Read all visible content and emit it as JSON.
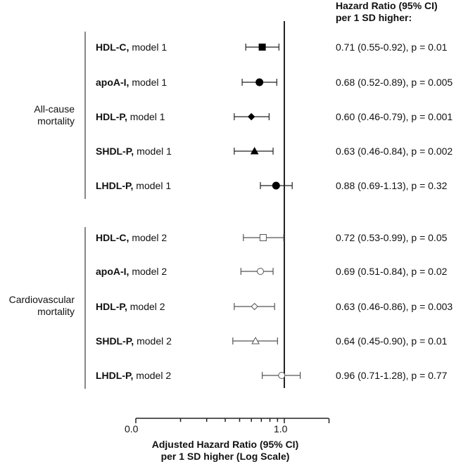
{
  "header": {
    "line1": "Hazard Ratio (95% CI)",
    "line2": "per 1 SD higher:"
  },
  "groups": [
    {
      "label_line1": "All-cause",
      "label_line2": "mortality"
    },
    {
      "label_line1": "Cardiovascular",
      "label_line2": "mortality"
    }
  ],
  "rows": [
    {
      "marker": "HDL-C,",
      "model": " model 1",
      "stat": "0.71 (0.55-0.92), p = 0.01"
    },
    {
      "marker": "apoA-I,",
      "model": " model 1",
      "stat": "0.68 (0.52-0.89), p = 0.005"
    },
    {
      "marker": "HDL-P,",
      "model": " model 1",
      "stat": "0.60 (0.46-0.79), p = 0.001"
    },
    {
      "marker": "SHDL-P,",
      "model": " model 1",
      "stat": "0.63 (0.46-0.84), p = 0.002"
    },
    {
      "marker": "LHDL-P,",
      "model": " model 1",
      "stat": "0.88 (0.69-1.13), p = 0.32"
    },
    {
      "marker": "HDL-C,",
      "model": " model 2",
      "stat": "0.72 (0.53-0.99), p = 0.05"
    },
    {
      "marker": "apoA-I,",
      "model": " model 2",
      "stat": "0.69 (0.51-0.84), p = 0.02"
    },
    {
      "marker": "HDL-P,",
      "model": " model 2",
      "stat": "0.63 (0.46-0.86), p = 0.003"
    },
    {
      "marker": "SHDL-P,",
      "model": " model 2",
      "stat": "0.64 (0.45-0.90), p = 0.01"
    },
    {
      "marker": "LHDL-P,",
      "model": " model 2",
      "stat": "0.96 (0.71-1.28), p = 0.77"
    }
  ],
  "axis": {
    "tick_low": "0.0",
    "tick_one": "1.0",
    "title_line1": "Adjusted Hazard Ratio (95% CI)",
    "title_line2": "per 1 SD higher (Log Scale)"
  },
  "chart_data": {
    "type": "forest",
    "title": "Hazard Ratio (95% CI) per 1 SD higher",
    "xlabel": "Adjusted Hazard Ratio (95% CI) per 1 SD higher (Log Scale)",
    "x_scale": "log",
    "xlim": [
      0.1,
      2.0
    ],
    "x_tick_labels": [
      "0.0",
      "1.0"
    ],
    "reference_line": 1.0,
    "groups": [
      {
        "name": "All-cause mortality",
        "rows": [
          {
            "label": "HDL-C, model 1",
            "hr": 0.71,
            "ci_low": 0.55,
            "ci_high": 0.92,
            "p": "0.01",
            "symbol": "filled-square"
          },
          {
            "label": "apoA-I, model 1",
            "hr": 0.68,
            "ci_low": 0.52,
            "ci_high": 0.89,
            "p": "0.005",
            "symbol": "filled-circle"
          },
          {
            "label": "HDL-P, model 1",
            "hr": 0.6,
            "ci_low": 0.46,
            "ci_high": 0.79,
            "p": "0.001",
            "symbol": "filled-diamond"
          },
          {
            "label": "SHDL-P, model 1",
            "hr": 0.63,
            "ci_low": 0.46,
            "ci_high": 0.84,
            "p": "0.002",
            "symbol": "filled-triangle"
          },
          {
            "label": "LHDL-P, model 1",
            "hr": 0.88,
            "ci_low": 0.69,
            "ci_high": 1.13,
            "p": "0.32",
            "symbol": "filled-circle"
          }
        ]
      },
      {
        "name": "Cardiovascular mortality",
        "rows": [
          {
            "label": "HDL-C, model 2",
            "hr": 0.72,
            "ci_low": 0.53,
            "ci_high": 0.99,
            "p": "0.05",
            "symbol": "open-square"
          },
          {
            "label": "apoA-I, model 2",
            "hr": 0.69,
            "ci_low": 0.51,
            "ci_high": 0.84,
            "p": "0.02",
            "symbol": "open-circle"
          },
          {
            "label": "HDL-P, model 2",
            "hr": 0.63,
            "ci_low": 0.46,
            "ci_high": 0.86,
            "p": "0.003",
            "symbol": "open-diamond"
          },
          {
            "label": "SHDL-P, model 2",
            "hr": 0.64,
            "ci_low": 0.45,
            "ci_high": 0.9,
            "p": "0.01",
            "symbol": "open-triangle"
          },
          {
            "label": "LHDL-P, model 2",
            "hr": 0.96,
            "ci_low": 0.71,
            "ci_high": 1.28,
            "p": "0.77",
            "symbol": "open-circle"
          }
        ]
      }
    ]
  }
}
